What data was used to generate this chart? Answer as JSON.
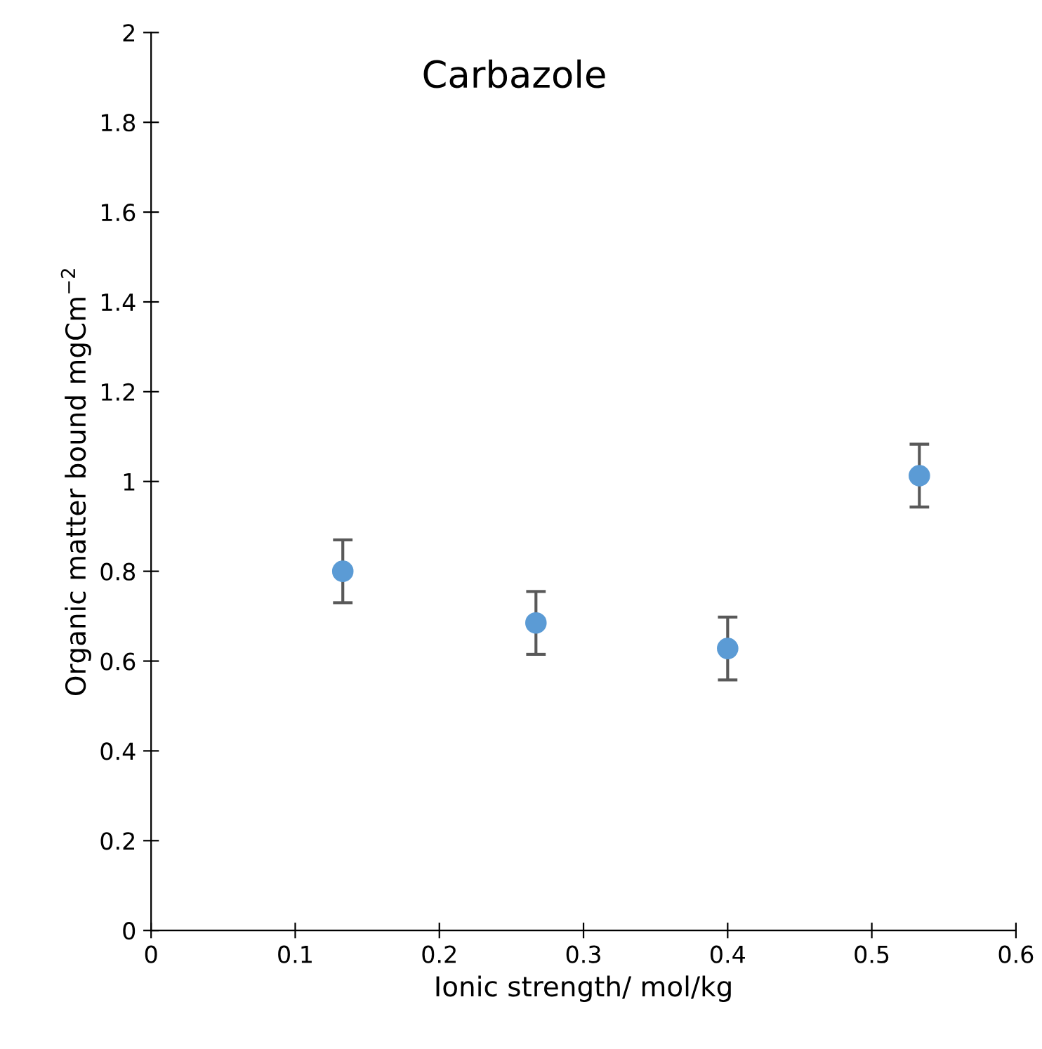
{
  "chart_data": {
    "type": "scatter",
    "title": "Carbazole",
    "xlabel": "Ionic strength/ mol/kg",
    "ylabel": "Organic matter bound mgCm$^{−2}$",
    "x": [
      0.133,
      0.267,
      0.4,
      0.533
    ],
    "series": [
      {
        "color": "#5b9bd5",
        "values": [
          0.8,
          0.685,
          0.628,
          1.013
        ],
        "errors": [
          0.07,
          0.07,
          0.07,
          0.07
        ]
      }
    ],
    "xlim": [
      0,
      0.6
    ],
    "xticks": [
      0,
      0.1,
      0.2,
      0.3,
      0.4,
      0.5,
      0.6
    ],
    "ylim": [
      0,
      2
    ],
    "yticks": [
      0,
      0.2,
      0.4,
      0.6,
      0.8,
      1,
      1.2,
      1.4,
      1.6,
      1.8,
      2
    ],
    "grid": false,
    "marker": "circle"
  }
}
